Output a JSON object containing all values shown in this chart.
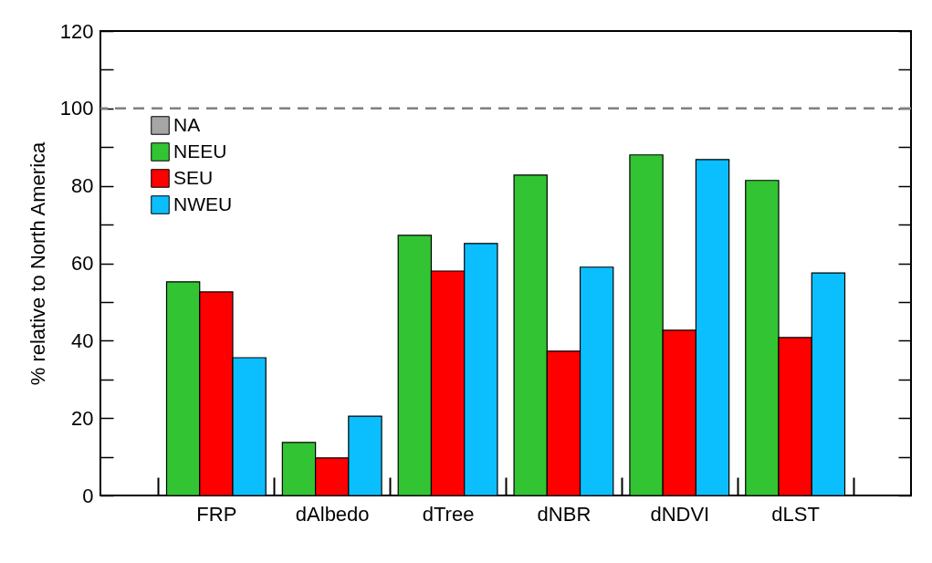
{
  "chart_data": {
    "type": "bar",
    "ylabel": "% relative to North America",
    "categories": [
      "FRP",
      "dAlbedo",
      "dTree",
      "dNBR",
      "dNDVI",
      "dLST"
    ],
    "series": [
      {
        "name": "NA",
        "color": "#a6a6a6",
        "values": [
          null,
          null,
          null,
          null,
          null,
          null
        ]
      },
      {
        "name": "NEEU",
        "color": "#33c433",
        "values": [
          55.2,
          13.7,
          67.2,
          82.8,
          88,
          81.4
        ]
      },
      {
        "name": "SEU",
        "color": "#ff0000",
        "values": [
          52.6,
          9.7,
          58,
          37.3,
          42.7,
          40.8
        ]
      },
      {
        "name": "NWEU",
        "color": "#0bbfff",
        "values": [
          35.6,
          20.5,
          65.1,
          59,
          86.8,
          57.5
        ]
      }
    ],
    "ylim": [
      0,
      120
    ],
    "yticks": [
      0,
      {
        "value": 10,
        "label": null
      },
      20,
      {
        "value": 30,
        "label": null
      },
      40,
      {
        "value": 50,
        "label": null
      },
      60,
      {
        "value": 70,
        "label": null
      },
      80,
      {
        "value": 90,
        "label": null
      },
      100,
      {
        "value": 110,
        "label": null
      },
      120
    ],
    "ref_lines": [
      {
        "axis": "y",
        "value": 100,
        "color": "#808080",
        "line_style": "dashed"
      }
    ],
    "legend": "top left",
    "grid": false
  }
}
